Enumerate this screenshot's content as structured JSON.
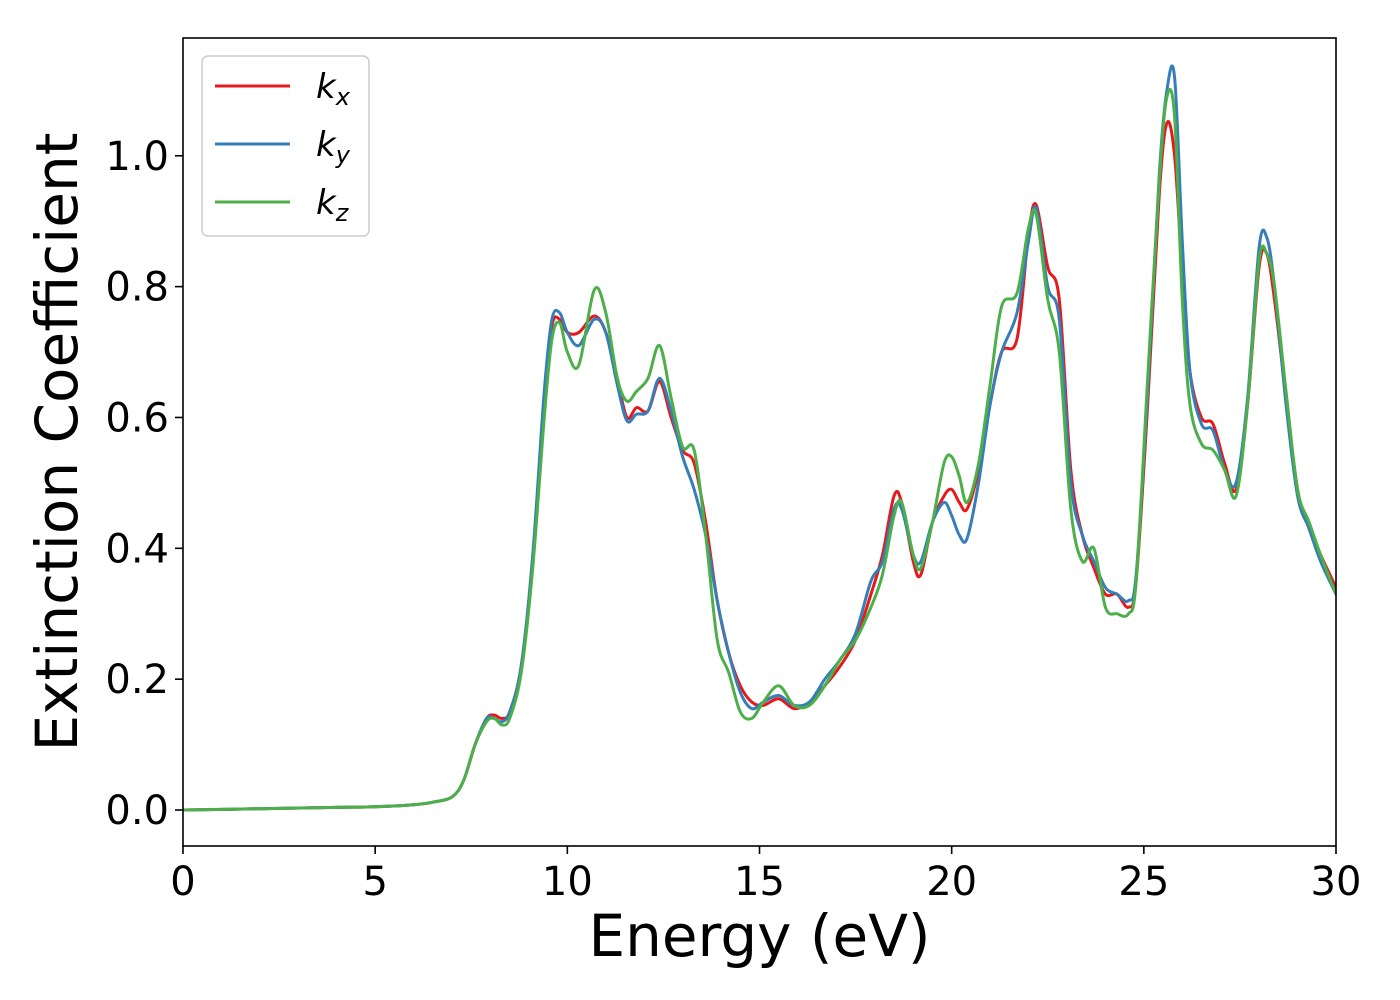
{
  "chart_data": {
    "type": "line",
    "title": "",
    "xlabel": "Energy (eV)",
    "ylabel": "Extinction Coefficient",
    "xlim": [
      0,
      30
    ],
    "ylim": [
      -0.055,
      1.18
    ],
    "xticks": [
      0,
      5,
      10,
      15,
      20,
      25,
      30
    ],
    "xtick_labels": [
      "0",
      "5",
      "10",
      "15",
      "20",
      "25",
      "30"
    ],
    "yticks": [
      0.0,
      0.2,
      0.4,
      0.6,
      0.8,
      1.0
    ],
    "ytick_labels": [
      "0.0",
      "0.2",
      "0.4",
      "0.6",
      "0.8",
      "1.0"
    ],
    "grid": false,
    "legend_position": "top-left",
    "series": [
      {
        "name": "k_x",
        "label_base": "k",
        "label_sub": "x",
        "color": "#e41a1c",
        "x": [
          0,
          2,
          4,
          5,
          6,
          6.5,
          7,
          7.3,
          7.6,
          7.9,
          8.1,
          8.3,
          8.5,
          8.8,
          9.1,
          9.4,
          9.6,
          9.8,
          10.0,
          10.3,
          10.7,
          11.0,
          11.3,
          11.55,
          11.8,
          12.1,
          12.4,
          12.7,
          13.0,
          13.3,
          13.6,
          13.9,
          14.2,
          14.5,
          14.8,
          15.1,
          15.5,
          15.9,
          16.3,
          16.7,
          17.1,
          17.5,
          17.9,
          18.2,
          18.5,
          18.7,
          19.0,
          19.2,
          19.5,
          19.8,
          20.0,
          20.2,
          20.4,
          20.7,
          21.0,
          21.3,
          21.7,
          22.0,
          22.2,
          22.5,
          22.8,
          23.1,
          23.4,
          23.7,
          24.0,
          24.3,
          24.6,
          24.8,
          25.1,
          25.4,
          25.6,
          25.8,
          26.0,
          26.2,
          26.5,
          26.8,
          27.1,
          27.4,
          27.7,
          28.0,
          28.2,
          28.4,
          28.7,
          29.0,
          29.3,
          29.6,
          30.0
        ],
        "y": [
          0.0,
          0.002,
          0.004,
          0.005,
          0.008,
          0.012,
          0.02,
          0.045,
          0.1,
          0.14,
          0.145,
          0.14,
          0.15,
          0.22,
          0.38,
          0.62,
          0.74,
          0.75,
          0.73,
          0.73,
          0.755,
          0.73,
          0.66,
          0.6,
          0.615,
          0.61,
          0.655,
          0.6,
          0.55,
          0.53,
          0.44,
          0.32,
          0.24,
          0.19,
          0.165,
          0.16,
          0.17,
          0.155,
          0.165,
          0.19,
          0.22,
          0.26,
          0.33,
          0.39,
          0.48,
          0.47,
          0.38,
          0.36,
          0.44,
          0.48,
          0.49,
          0.47,
          0.46,
          0.52,
          0.62,
          0.7,
          0.72,
          0.88,
          0.925,
          0.83,
          0.78,
          0.52,
          0.42,
          0.37,
          0.33,
          0.33,
          0.31,
          0.35,
          0.62,
          0.94,
          1.05,
          1.0,
          0.82,
          0.67,
          0.6,
          0.59,
          0.53,
          0.49,
          0.62,
          0.83,
          0.85,
          0.78,
          0.63,
          0.49,
          0.43,
          0.39,
          0.34
        ]
      },
      {
        "name": "k_y",
        "label_base": "k",
        "label_sub": "y",
        "color": "#377eb8",
        "x": [
          0,
          2,
          4,
          5,
          6,
          6.5,
          7,
          7.3,
          7.6,
          7.9,
          8.1,
          8.3,
          8.5,
          8.8,
          9.1,
          9.4,
          9.6,
          9.8,
          10.0,
          10.3,
          10.7,
          11.0,
          11.3,
          11.55,
          11.8,
          12.1,
          12.4,
          12.7,
          13.0,
          13.3,
          13.6,
          13.9,
          14.2,
          14.5,
          14.8,
          15.1,
          15.5,
          15.9,
          16.3,
          16.7,
          17.1,
          17.5,
          17.9,
          18.2,
          18.5,
          18.7,
          19.0,
          19.2,
          19.5,
          19.8,
          20.0,
          20.2,
          20.4,
          20.7,
          21.0,
          21.3,
          21.7,
          22.0,
          22.2,
          22.5,
          22.8,
          23.1,
          23.4,
          23.7,
          24.0,
          24.3,
          24.6,
          24.8,
          25.1,
          25.4,
          25.6,
          25.8,
          26.0,
          26.2,
          26.5,
          26.8,
          27.1,
          27.4,
          27.7,
          28.0,
          28.2,
          28.4,
          28.7,
          29.0,
          29.3,
          29.6,
          30.0
        ],
        "y": [
          0.0,
          0.002,
          0.004,
          0.005,
          0.008,
          0.012,
          0.02,
          0.045,
          0.1,
          0.14,
          0.14,
          0.135,
          0.15,
          0.22,
          0.39,
          0.64,
          0.75,
          0.76,
          0.73,
          0.71,
          0.75,
          0.73,
          0.65,
          0.595,
          0.605,
          0.61,
          0.66,
          0.61,
          0.54,
          0.49,
          0.42,
          0.32,
          0.24,
          0.18,
          0.155,
          0.165,
          0.175,
          0.16,
          0.165,
          0.2,
          0.23,
          0.27,
          0.35,
          0.38,
          0.46,
          0.46,
          0.39,
          0.38,
          0.44,
          0.47,
          0.45,
          0.42,
          0.415,
          0.5,
          0.62,
          0.7,
          0.76,
          0.87,
          0.92,
          0.8,
          0.75,
          0.5,
          0.42,
          0.38,
          0.34,
          0.33,
          0.32,
          0.36,
          0.64,
          0.97,
          1.1,
          1.12,
          0.87,
          0.67,
          0.59,
          0.58,
          0.52,
          0.5,
          0.63,
          0.86,
          0.875,
          0.8,
          0.62,
          0.48,
          0.43,
          0.38,
          0.33
        ]
      },
      {
        "name": "k_z",
        "label_base": "k",
        "label_sub": "z",
        "color": "#4daf4a",
        "x": [
          0,
          2,
          4,
          5,
          6,
          6.5,
          7,
          7.3,
          7.6,
          7.9,
          8.1,
          8.3,
          8.5,
          8.8,
          9.1,
          9.4,
          9.6,
          9.8,
          10.0,
          10.3,
          10.7,
          11.0,
          11.3,
          11.55,
          11.8,
          12.1,
          12.4,
          12.7,
          13.0,
          13.3,
          13.6,
          13.9,
          14.2,
          14.5,
          14.8,
          15.1,
          15.5,
          15.9,
          16.3,
          16.7,
          17.1,
          17.5,
          17.9,
          18.2,
          18.5,
          18.7,
          19.0,
          19.2,
          19.5,
          19.8,
          20.0,
          20.2,
          20.4,
          20.7,
          21.0,
          21.3,
          21.7,
          22.0,
          22.2,
          22.5,
          22.8,
          23.1,
          23.4,
          23.7,
          24.0,
          24.3,
          24.6,
          24.8,
          25.1,
          25.4,
          25.6,
          25.8,
          26.0,
          26.2,
          26.5,
          26.8,
          27.1,
          27.4,
          27.7,
          28.0,
          28.2,
          28.4,
          28.7,
          29.0,
          29.3,
          29.6,
          30.0
        ],
        "y": [
          0.0,
          0.002,
          0.004,
          0.005,
          0.008,
          0.012,
          0.02,
          0.045,
          0.1,
          0.135,
          0.14,
          0.13,
          0.14,
          0.21,
          0.37,
          0.6,
          0.72,
          0.745,
          0.7,
          0.68,
          0.795,
          0.76,
          0.66,
          0.625,
          0.64,
          0.66,
          0.71,
          0.63,
          0.555,
          0.55,
          0.42,
          0.26,
          0.21,
          0.15,
          0.14,
          0.165,
          0.19,
          0.16,
          0.16,
          0.19,
          0.23,
          0.26,
          0.31,
          0.36,
          0.45,
          0.47,
          0.39,
          0.37,
          0.44,
          0.53,
          0.54,
          0.51,
          0.47,
          0.53,
          0.65,
          0.77,
          0.79,
          0.89,
          0.91,
          0.78,
          0.7,
          0.46,
          0.38,
          0.4,
          0.31,
          0.3,
          0.3,
          0.35,
          0.66,
          0.96,
          1.09,
          1.06,
          0.78,
          0.62,
          0.56,
          0.55,
          0.52,
          0.48,
          0.62,
          0.84,
          0.85,
          0.8,
          0.64,
          0.49,
          0.44,
          0.39,
          0.33
        ]
      }
    ]
  }
}
